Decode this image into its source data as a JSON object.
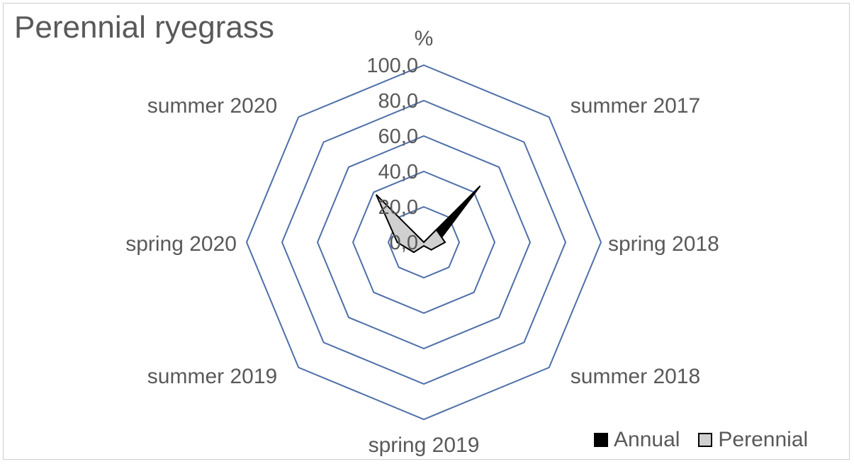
{
  "chart_data": {
    "type": "radar",
    "title": "Perennial ryegrass",
    "unit_label": "%",
    "categories": [
      "summer 2017",
      "spring 2018",
      "summer 2018",
      "spring 2019",
      "summer 2019",
      "spring 2020",
      "summer 2020",
      "%"
    ],
    "axis_ticks": [
      "0,0",
      "20,0",
      "40,0",
      "60,0",
      "80,0",
      "100,0"
    ],
    "rlim": [
      0,
      100
    ],
    "series": [
      {
        "name": "Annual",
        "color": "#000000",
        "values": [
          45,
          8,
          6,
          2,
          6,
          8,
          10,
          0
        ]
      },
      {
        "name": "Perennial",
        "color": "#d0d0d0",
        "values": [
          10,
          12,
          6,
          2,
          8,
          15,
          38,
          0
        ]
      }
    ],
    "grid_color": "#4f6fa8",
    "legend_position": "bottom-right"
  }
}
